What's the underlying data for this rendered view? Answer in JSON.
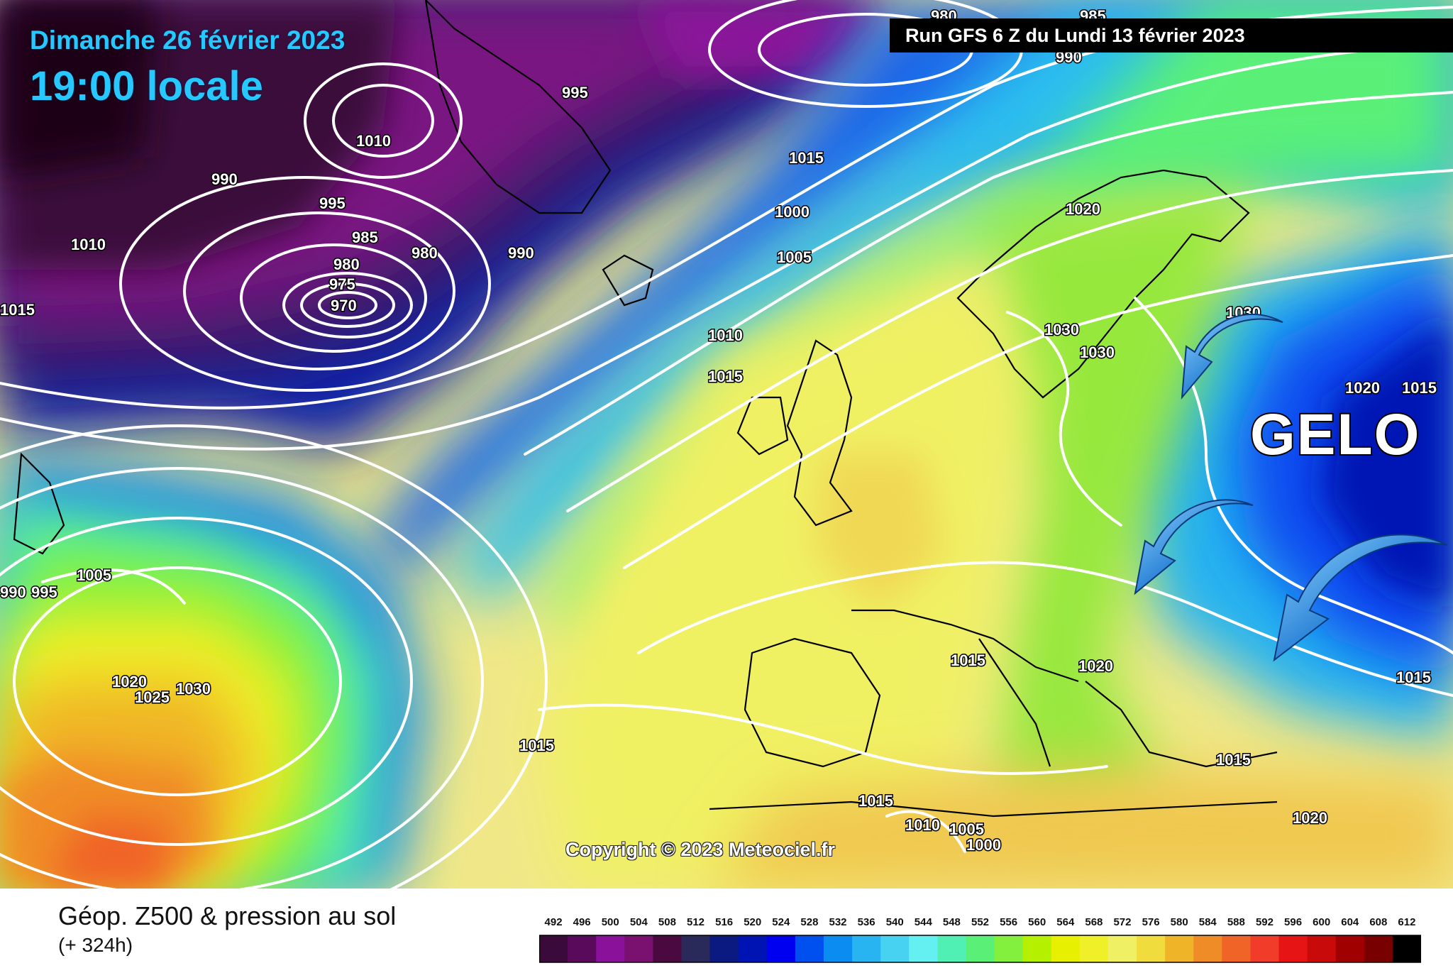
{
  "header": {
    "date": "Dimanche 26 février 2023",
    "time": "19:00 locale",
    "run": "Run GFS 6 Z du Lundi 13 février 2023"
  },
  "map": {
    "copyright": "Copyright © 2023 Meteociel.fr",
    "annotation": "GELO",
    "isobar_labels": [
      "980",
      "985",
      "990",
      "995",
      "1010",
      "1000",
      "1005",
      "1010",
      "1015",
      "1020",
      "1030",
      "1030",
      "1030",
      "1020",
      "1015",
      "1015",
      "990",
      "995",
      "985",
      "980",
      "975",
      "970",
      "980",
      "990",
      "1010",
      "1015",
      "1005",
      "990",
      "995",
      "1020",
      "1025",
      "1030",
      "1015",
      "1020",
      "1015",
      "1015",
      "1010",
      "1005",
      "1000",
      "1015",
      "1020",
      "1015"
    ]
  },
  "footer": {
    "title": "Géop. Z500 & pression au sol",
    "subtitle": "(+ 324h)"
  },
  "legend": {
    "labels": [
      "492",
      "496",
      "500",
      "504",
      "508",
      "512",
      "516",
      "520",
      "524",
      "528",
      "532",
      "536",
      "540",
      "544",
      "548",
      "552",
      "556",
      "560",
      "564",
      "568",
      "572",
      "576",
      "580",
      "584",
      "588",
      "592",
      "596",
      "600",
      "604",
      "608",
      "612"
    ],
    "colors": [
      "#3a0a3a",
      "#5a0a5a",
      "#8a129a",
      "#7a1070",
      "#4a0a40",
      "#2a2a5a",
      "#0a1a80",
      "#0014b4",
      "#0000f0",
      "#0050f0",
      "#0a8cf0",
      "#28b4f0",
      "#46d2f0",
      "#64f0f0",
      "#50f0b4",
      "#5af078",
      "#82f03c",
      "#b4f000",
      "#e6f000",
      "#f0f028",
      "#f0f064",
      "#f0dc3c",
      "#f0b428",
      "#f08c28",
      "#f06428",
      "#f03c28",
      "#e61414",
      "#c80a0a",
      "#a00000",
      "#780000",
      "#000000"
    ]
  }
}
